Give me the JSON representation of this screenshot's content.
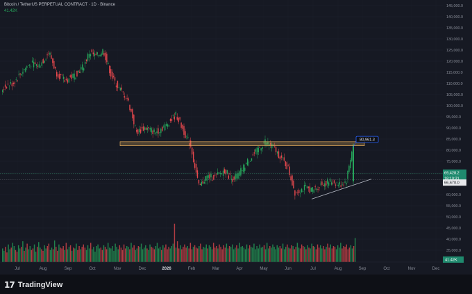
{
  "header": {
    "title": "Bitcoin / TetherUS PERPETUAL CONTRACT · 1D · Binance",
    "volume_label": "41.42K"
  },
  "brand": {
    "mark": "17",
    "name": "TradingView"
  },
  "colors": {
    "up": "#26a65b",
    "down": "#e5484d",
    "level_box": "#e0a95a",
    "trendline": "#b9bdc8",
    "callout": "#2962ff"
  },
  "chart_data": {
    "type": "candlestick",
    "title": "Bitcoin / TetherUS PERPETUAL CONTRACT · 1D · Binance",
    "y_ticks": [
      35000,
      40000,
      45000,
      50000,
      55000,
      60000,
      65000,
      70000,
      75000,
      80000,
      85000,
      90000,
      95000,
      100000,
      105000,
      110000,
      115000,
      120000,
      125000,
      130000,
      135000,
      140000,
      145000
    ],
    "y_tick_labels": [
      "35,000.0",
      "40,000.0",
      "45,000.0",
      "50,000.0",
      "55,000.0",
      "60,000.0",
      "65,000.0",
      "70,000.0",
      "75,000.0",
      "80,000.0",
      "85,000.0",
      "90,000.0",
      "95,000.0",
      "100,000.0",
      "105,000.0",
      "110,000.0",
      "115,000.0",
      "120,000.0",
      "125,000.0",
      "130,000.0",
      "135,000.0",
      "140,000.0",
      "145,000.0"
    ],
    "x_tick_labels": [
      "Jul",
      "Aug",
      "Sep",
      "Oct",
      "Nov",
      "Dec",
      "2026",
      "Feb",
      "Mar",
      "Apr",
      "May",
      "Jun",
      "Jul",
      "Aug",
      "Sep",
      "Oct",
      "Nov",
      "Dec"
    ],
    "price_path": [
      [
        0,
        106000
      ],
      [
        10,
        109000
      ],
      [
        20,
        110000
      ],
      [
        35,
        116000
      ],
      [
        45,
        119000
      ],
      [
        58,
        118000
      ],
      [
        72,
        124000
      ],
      [
        82,
        115000
      ],
      [
        95,
        111000
      ],
      [
        110,
        114000
      ],
      [
        122,
        118000
      ],
      [
        130,
        124000
      ],
      [
        140,
        122000
      ],
      [
        150,
        125000
      ],
      [
        162,
        113000
      ],
      [
        172,
        108000
      ],
      [
        185,
        103000
      ],
      [
        198,
        88000
      ],
      [
        210,
        90000
      ],
      [
        225,
        88000
      ],
      [
        240,
        91000
      ],
      [
        255,
        96000
      ],
      [
        265,
        89000
      ],
      [
        276,
        82000
      ],
      [
        288,
        63000
      ],
      [
        298,
        68000
      ],
      [
        312,
        68000
      ],
      [
        325,
        71000
      ],
      [
        335,
        67000
      ],
      [
        345,
        69000
      ],
      [
        358,
        75000
      ],
      [
        370,
        79000
      ],
      [
        383,
        84000
      ],
      [
        393,
        82000
      ],
      [
        405,
        77000
      ],
      [
        416,
        72000
      ],
      [
        426,
        61000
      ],
      [
        440,
        63000
      ],
      [
        452,
        62000
      ],
      [
        466,
        65000
      ],
      [
        478,
        66000
      ],
      [
        492,
        64500
      ],
      [
        500,
        66000
      ],
      [
        510,
        83000
      ]
    ],
    "volume_bars": [
      17,
      14,
      19,
      12,
      22,
      16,
      18,
      24,
      20,
      15,
      13,
      21,
      17,
      19,
      26,
      14,
      18,
      23,
      16,
      20,
      15,
      17,
      22,
      13,
      19,
      25,
      18,
      16,
      14,
      21,
      17,
      20,
      23,
      15,
      18,
      16,
      27,
      19,
      14,
      22,
      18,
      17,
      20,
      15,
      24,
      16,
      19,
      21,
      14,
      18,
      17,
      23,
      15,
      20,
      16,
      19,
      22,
      18,
      15,
      21,
      17,
      24,
      16,
      19,
      13,
      20,
      22,
      17,
      18,
      15,
      21,
      19,
      16,
      24,
      18,
      17,
      20,
      14,
      23,
      19,
      16,
      21,
      18,
      15,
      22,
      17,
      20,
      19,
      16,
      24,
      18,
      21,
      15,
      17,
      20,
      19,
      23,
      16,
      18,
      21,
      17,
      15,
      22,
      19,
      18,
      16,
      20,
      24,
      17,
      19,
      15,
      21,
      18,
      22,
      16,
      19,
      17,
      20,
      23,
      48,
      18,
      26,
      17,
      21,
      16,
      19,
      22,
      18,
      20,
      17,
      24,
      16,
      19,
      21,
      18,
      17,
      20,
      23,
      16,
      19,
      18,
      22,
      17,
      21,
      19,
      16,
      24,
      18,
      20,
      17,
      22,
      19,
      16,
      21,
      18,
      23,
      17,
      20,
      19,
      22,
      16,
      18,
      21,
      17,
      24,
      19,
      20,
      18,
      16,
      22,
      17,
      21,
      19,
      18,
      23,
      16,
      20,
      17,
      22,
      18,
      19,
      21,
      16,
      24,
      17,
      20,
      18,
      22,
      19,
      16,
      21,
      18,
      20,
      17,
      23,
      16,
      19,
      22,
      18,
      17,
      21,
      20,
      16,
      19,
      24,
      18,
      17,
      22,
      20,
      19,
      16,
      21,
      18,
      17,
      23,
      20,
      19,
      16,
      22,
      18,
      21,
      17,
      20,
      16,
      19,
      23,
      18,
      22,
      17,
      20,
      19,
      16,
      21,
      18,
      24,
      17,
      20,
      19,
      22,
      16,
      18,
      21,
      17,
      20,
      30
    ],
    "annotations": {
      "resistance_box": {
        "y_low": 82000,
        "y_high": 83800
      },
      "callout_value": "80,961.3",
      "trendline_start": [
        449,
        58000
      ],
      "trendline_end": [
        535,
        67000
      ],
      "last_price_label": "69,428.2",
      "countdown_label": "18:10:31",
      "crosshair_label": "66,670.0",
      "volume_label": "41.42K"
    }
  }
}
